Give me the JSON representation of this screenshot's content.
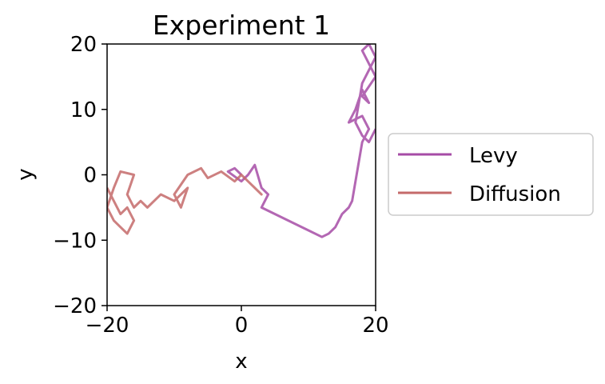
{
  "chart_data": {
    "type": "line",
    "title": "Experiment 1",
    "xlabel": "x",
    "ylabel": "y",
    "xlim": [
      -20,
      20
    ],
    "ylim": [
      -20,
      20
    ],
    "xticks": [
      -20,
      0,
      20
    ],
    "yticks": [
      -20,
      -10,
      0,
      10,
      20
    ],
    "xtick_labels": [
      "−20",
      "0",
      "20"
    ],
    "ytick_labels": [
      "−20",
      "−10",
      "0",
      "10",
      "20"
    ],
    "grid": false,
    "legend_position": "outside-right",
    "series": [
      {
        "name": "Levy",
        "color": "#a64ca6",
        "x": [
          0,
          -1,
          -2,
          0,
          1,
          2,
          3,
          4,
          3,
          12,
          13,
          14,
          15,
          16,
          16.5,
          18,
          19,
          18,
          16,
          17,
          18,
          19,
          18,
          20,
          19,
          18,
          19,
          20,
          18,
          17,
          18,
          19,
          20
        ],
        "y": [
          0,
          1,
          0.5,
          -1,
          0,
          1.5,
          -2,
          -3,
          -5,
          -9.5,
          -9,
          -8,
          -6,
          -5,
          -4,
          5,
          7,
          9,
          8,
          10,
          13,
          11,
          12,
          15,
          17,
          19,
          20,
          18,
          14,
          8,
          6,
          5,
          7
        ]
      },
      {
        "name": "Diffusion",
        "color": "#c46a6a",
        "x": [
          0,
          1,
          2,
          3,
          1,
          0,
          -1,
          -3,
          -5,
          -6,
          -8,
          -10,
          -9,
          -8,
          -10,
          -12,
          -14,
          -15,
          -16,
          -17,
          -16,
          -18,
          -19,
          -20,
          -19,
          -18,
          -17,
          -16,
          -17,
          -18,
          -19,
          -20
        ],
        "y": [
          0,
          -1,
          -2,
          -3,
          -1,
          0,
          -1,
          0.5,
          -0.5,
          1,
          0,
          -3,
          -5,
          -2,
          -4,
          -3,
          -5,
          -4,
          -5,
          -3,
          0,
          0.5,
          -2,
          -5,
          -7,
          -8,
          -9,
          -7,
          -5,
          -6,
          -4,
          -2
        ]
      }
    ]
  }
}
